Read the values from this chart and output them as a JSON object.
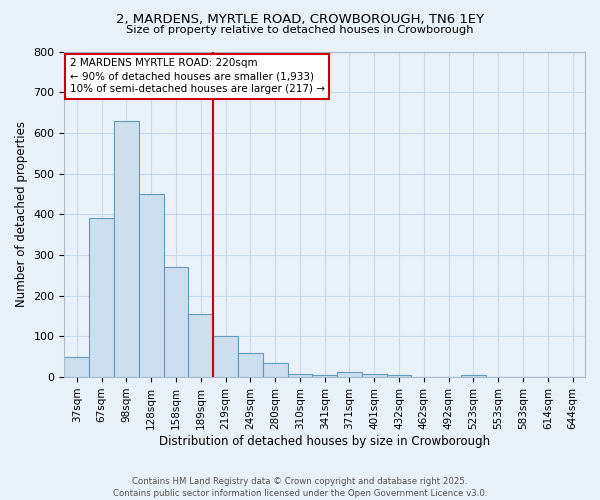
{
  "title1": "2, MARDENS, MYRTLE ROAD, CROWBOROUGH, TN6 1EY",
  "title2": "Size of property relative to detached houses in Crowborough",
  "xlabel": "Distribution of detached houses by size in Crowborough",
  "ylabel": "Number of detached properties",
  "categories": [
    "37sqm",
    "67sqm",
    "98sqm",
    "128sqm",
    "158sqm",
    "189sqm",
    "219sqm",
    "249sqm",
    "280sqm",
    "310sqm",
    "341sqm",
    "371sqm",
    "401sqm",
    "432sqm",
    "462sqm",
    "492sqm",
    "523sqm",
    "553sqm",
    "583sqm",
    "614sqm",
    "644sqm"
  ],
  "values": [
    50,
    390,
    630,
    450,
    270,
    155,
    100,
    60,
    35,
    7,
    5,
    13,
    7,
    4,
    0,
    0,
    5,
    0,
    0,
    0,
    0
  ],
  "bar_color": "#ccdded",
  "bar_edge_color": "#6699bb",
  "annotation_text_lines": [
    "2 MARDENS MYRTLE ROAD: 220sqm",
    "← 90% of detached houses are smaller (1,933)",
    "10% of semi-detached houses are larger (217) →"
  ],
  "annotation_box_facecolor": "#ffffff",
  "annotation_box_edgecolor": "#cc0000",
  "vline_color": "#cc0000",
  "vline_x_index": 6,
  "ylim": [
    0,
    800
  ],
  "yticks": [
    0,
    100,
    200,
    300,
    400,
    500,
    600,
    700,
    800
  ],
  "grid_color": "#c5d9ea",
  "background_color": "#e8f0f8",
  "footer_line1": "Contains HM Land Registry data © Crown copyright and database right 2025.",
  "footer_line2": "Contains public sector information licensed under the Open Government Licence v3.0."
}
